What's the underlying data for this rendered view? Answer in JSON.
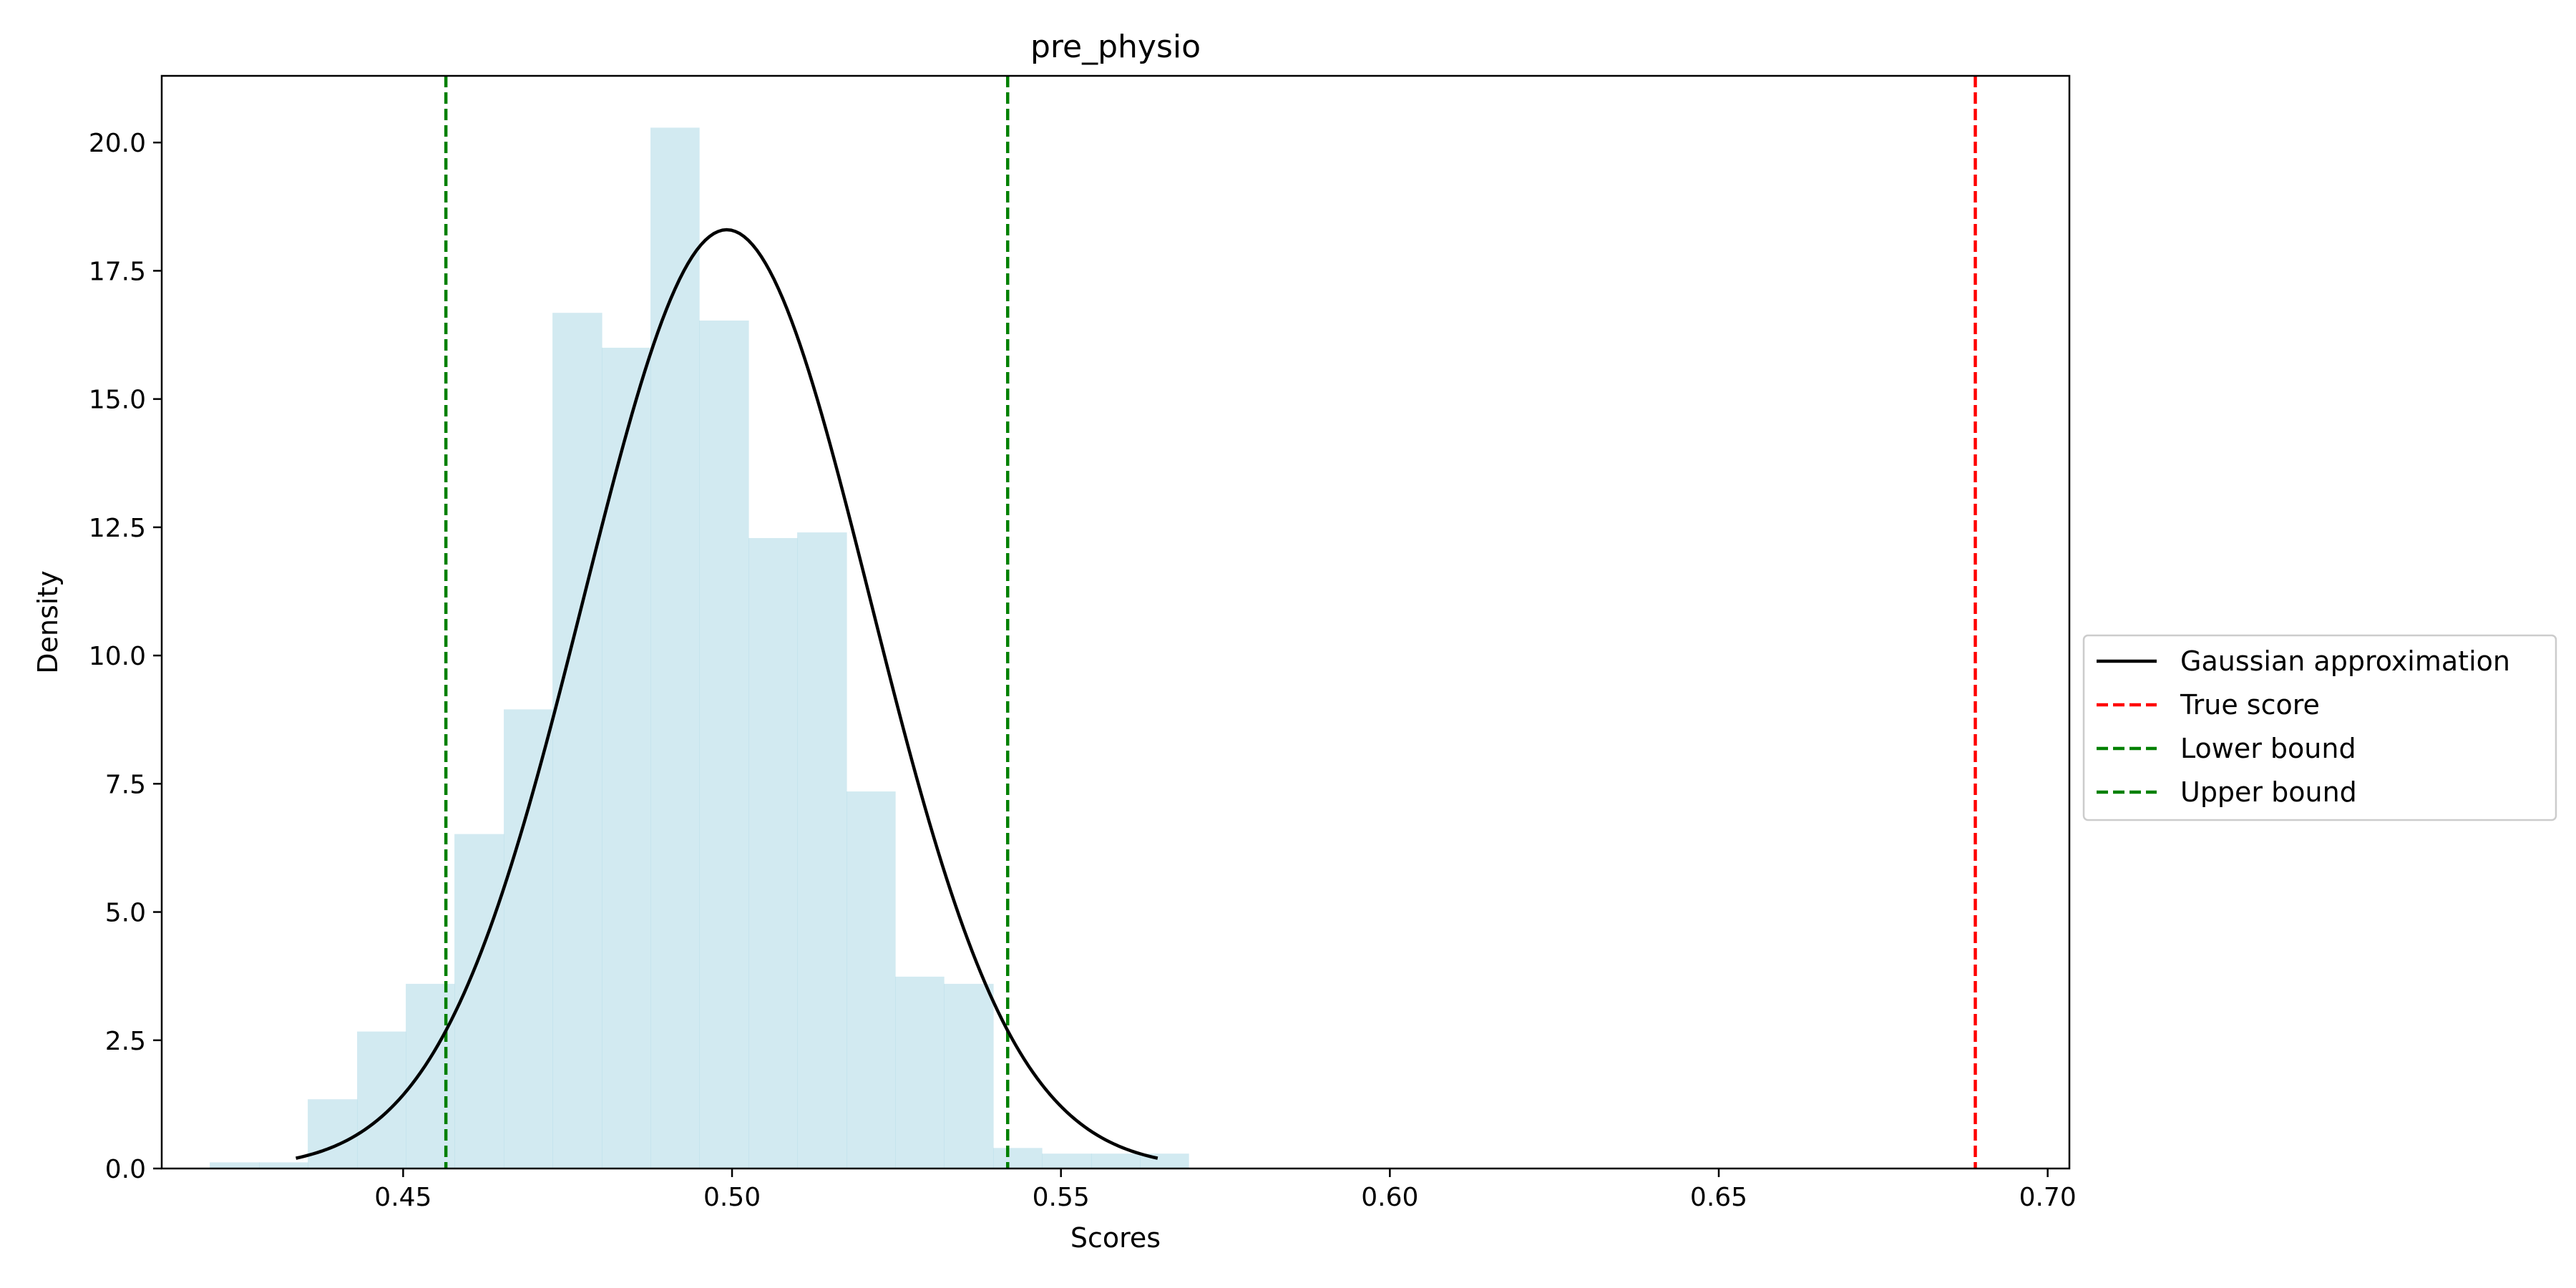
{
  "chart_data": {
    "type": "bar",
    "title": "pre_physio",
    "xlabel": "Scores",
    "ylabel": "Density",
    "xlim": [
      0.4133,
      0.7033
    ],
    "ylim": [
      0,
      21.3
    ],
    "x_ticks": [
      0.45,
      0.5,
      0.55,
      0.6,
      0.65,
      0.7
    ],
    "x_tick_labels": [
      "0.45",
      "0.50",
      "0.55",
      "0.60",
      "0.65",
      "0.70"
    ],
    "y_ticks": [
      0,
      2.5,
      5.0,
      7.5,
      10.0,
      12.5,
      15.0,
      17.5,
      20.0
    ],
    "y_tick_labels": [
      "0.0",
      "2.5",
      "5.0",
      "7.5",
      "10.0",
      "12.5",
      "15.0",
      "17.5",
      "20.0"
    ],
    "grid": false,
    "legend_position": "right, outside plot area",
    "histogram": {
      "color": "#add8e6",
      "bin_edges": [
        0.4206,
        0.4281,
        0.4355,
        0.443,
        0.4504,
        0.4578,
        0.4653,
        0.4727,
        0.4802,
        0.4876,
        0.495,
        0.5025,
        0.5099,
        0.5174,
        0.5248,
        0.5322,
        0.5397,
        0.5471,
        0.5546,
        0.562,
        0.5694
      ],
      "values": [
        0.12,
        0.12,
        1.35,
        2.67,
        3.6,
        6.52,
        8.95,
        16.68,
        16.0,
        20.29,
        16.53,
        12.29,
        12.4,
        7.35,
        3.74,
        3.6,
        0.4,
        0.29,
        0.29,
        0.29
      ]
    },
    "series": [
      {
        "name": "Gaussian approximation",
        "kind": "line",
        "mean": 0.4992,
        "std": 0.0218,
        "x_range": [
          0.4337,
          0.5647
        ],
        "color": "#000000",
        "style": "solid"
      },
      {
        "name": "True score",
        "kind": "vline",
        "x": 0.689,
        "color": "#ff0000",
        "style": "dashed"
      },
      {
        "name": "Lower bound",
        "kind": "vline",
        "x": 0.4565,
        "color": "#008000",
        "style": "dashed"
      },
      {
        "name": "Upper bound",
        "kind": "vline",
        "x": 0.5419,
        "color": "#008000",
        "style": "dashed"
      }
    ]
  }
}
